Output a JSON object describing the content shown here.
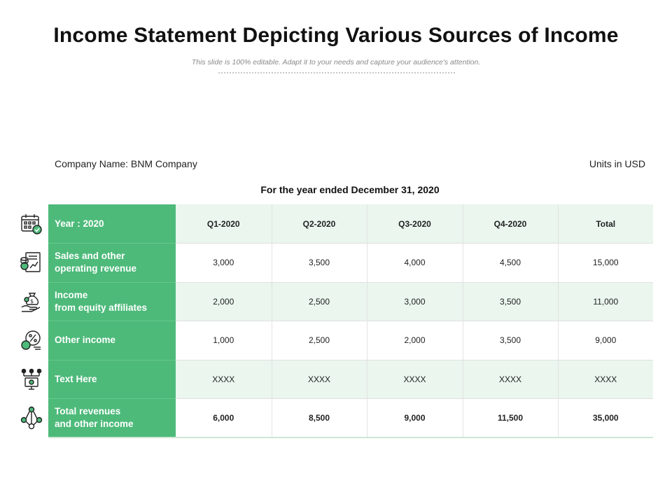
{
  "title": "Income Statement Depicting Various Sources of Income",
  "subtitle": "This slide is 100% editable. Adapt it to your needs and capture your audience's attention.",
  "company": "Company Name: BNM Company",
  "units": "Units in USD",
  "period": "For the year ended December 31, 2020",
  "table": {
    "header": {
      "label": "Year : 2020",
      "cols": [
        "Q1-2020",
        "Q2-2020",
        "Q3-2020",
        "Q4-2020",
        "Total"
      ]
    },
    "rows": [
      {
        "label": [
          "Sales and other",
          "operating revenue"
        ],
        "values": [
          "3,000",
          "3,500",
          "4,000",
          "4,500",
          "15,000"
        ],
        "icon": "revenue-document-icon"
      },
      {
        "label": [
          "Income",
          "from equity affiliates"
        ],
        "values": [
          "2,000",
          "2,500",
          "3,000",
          "3,500",
          "11,000"
        ],
        "icon": "money-bag-hand-icon"
      },
      {
        "label": [
          "Other income"
        ],
        "values": [
          "1,000",
          "2,500",
          "2,000",
          "3,500",
          "9,000"
        ],
        "icon": "percent-coins-icon"
      },
      {
        "label": [
          "Text Here"
        ],
        "values": [
          "XXXX",
          "XXXX",
          "XXXX",
          "XXXX",
          "XXXX"
        ],
        "icon": "network-monitor-icon"
      },
      {
        "label": [
          "Total revenues",
          "and other income"
        ],
        "values": [
          "6,000",
          "8,500",
          "9,000",
          "11,500",
          "35,000"
        ],
        "icon": "connected-nodes-icon"
      }
    ]
  },
  "colors": {
    "accent": "#4dba7a",
    "shade": "#eaf6ee",
    "icon_stroke": "#222222",
    "icon_accent": "#4dba7a"
  }
}
